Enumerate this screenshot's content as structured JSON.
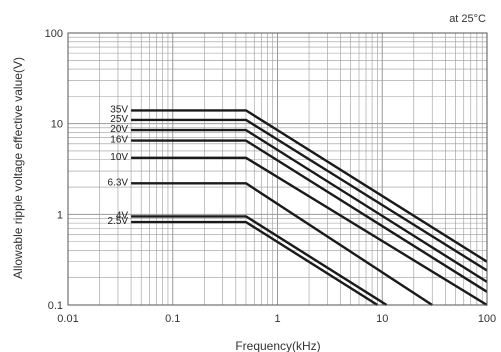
{
  "chart_data": {
    "type": "line",
    "annotation": "at 25°C",
    "xlabel": "Frequency(kHz)",
    "ylabel": "Allowable ripple voltage effective value(V)",
    "x_scale": "log",
    "y_scale": "log",
    "xlim": [
      0.01,
      100
    ],
    "ylim": [
      0.1,
      100
    ],
    "x_ticks": [
      "0.01",
      "0.1",
      "1",
      "10",
      "100"
    ],
    "y_ticks": [
      "100",
      "10",
      "1",
      "0.1"
    ],
    "grid": true,
    "series": [
      {
        "name": "35V",
        "x": [
          0.04,
          0.5,
          100
        ],
        "y": [
          14,
          14,
          0.3
        ]
      },
      {
        "name": "25V",
        "x": [
          0.04,
          0.5,
          100
        ],
        "y": [
          11,
          11,
          0.24
        ]
      },
      {
        "name": "20V",
        "x": [
          0.04,
          0.5,
          100
        ],
        "y": [
          8.5,
          8.5,
          0.18
        ]
      },
      {
        "name": "16V",
        "x": [
          0.04,
          0.5,
          100
        ],
        "y": [
          6.5,
          6.5,
          0.14
        ]
      },
      {
        "name": "10V",
        "x": [
          0.04,
          0.5,
          100
        ],
        "y": [
          4.2,
          4.2,
          0.1
        ]
      },
      {
        "name": "6.3V",
        "x": [
          0.04,
          0.5,
          30
        ],
        "y": [
          2.2,
          2.2,
          0.1
        ]
      },
      {
        "name": "4V",
        "x": [
          0.04,
          0.5,
          11
        ],
        "y": [
          0.95,
          0.95,
          0.1
        ]
      },
      {
        "name": "2.5V",
        "x": [
          0.04,
          0.5,
          9
        ],
        "y": [
          0.82,
          0.82,
          0.1
        ]
      }
    ],
    "line_color": "#1a1a1a",
    "grid_color": "#9a9a9a"
  }
}
